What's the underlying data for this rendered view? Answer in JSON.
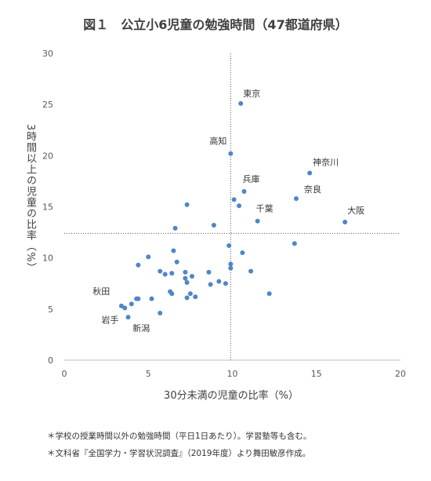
{
  "chart_data": {
    "type": "scatter",
    "title": "図１　公立小6児童の勉強時間（47都道府県）",
    "xlabel": "30分未満の児童の比率（%）",
    "ylabel": "3時間以上の児童の比率（%）",
    "xlim": [
      0,
      20
    ],
    "ylim": [
      0,
      30
    ],
    "xticks": [
      0,
      5,
      10,
      15,
      20
    ],
    "yticks": [
      0,
      5,
      10,
      15,
      20,
      25,
      30
    ],
    "grid": false,
    "reference_lines": {
      "x": 9.9,
      "y": 12.4
    },
    "color": "#4f86c6",
    "points": [
      {
        "x": 10.5,
        "y": 25.1,
        "label": "東京"
      },
      {
        "x": 9.9,
        "y": 20.2,
        "label": "高知"
      },
      {
        "x": 14.6,
        "y": 18.3,
        "label": "神奈川"
      },
      {
        "x": 10.7,
        "y": 16.5,
        "label": "兵庫"
      },
      {
        "x": 13.8,
        "y": 15.8,
        "label": "奈良"
      },
      {
        "x": 11.5,
        "y": 13.6,
        "label": "千葉"
      },
      {
        "x": 16.7,
        "y": 13.5,
        "label": "大阪"
      },
      {
        "x": 4.3,
        "y": 6.0,
        "label": "秋田"
      },
      {
        "x": 3.8,
        "y": 4.2,
        "label": "岩手"
      },
      {
        "x": 5.7,
        "y": 4.6,
        "label": "新潟"
      },
      {
        "x": 10.1,
        "y": 15.7,
        "label": ""
      },
      {
        "x": 10.4,
        "y": 15.1,
        "label": ""
      },
      {
        "x": 7.3,
        "y": 15.2,
        "label": ""
      },
      {
        "x": 6.6,
        "y": 12.9,
        "label": ""
      },
      {
        "x": 8.9,
        "y": 13.2,
        "label": ""
      },
      {
        "x": 13.7,
        "y": 11.4,
        "label": ""
      },
      {
        "x": 9.8,
        "y": 11.2,
        "label": ""
      },
      {
        "x": 6.5,
        "y": 10.7,
        "label": ""
      },
      {
        "x": 10.6,
        "y": 10.5,
        "label": ""
      },
      {
        "x": 5.0,
        "y": 10.1,
        "label": ""
      },
      {
        "x": 6.7,
        "y": 9.6,
        "label": ""
      },
      {
        "x": 9.9,
        "y": 9.4,
        "label": ""
      },
      {
        "x": 9.9,
        "y": 9.0,
        "label": ""
      },
      {
        "x": 4.4,
        "y": 9.3,
        "label": ""
      },
      {
        "x": 5.7,
        "y": 8.7,
        "label": ""
      },
      {
        "x": 6.0,
        "y": 8.4,
        "label": ""
      },
      {
        "x": 6.4,
        "y": 8.5,
        "label": ""
      },
      {
        "x": 7.2,
        "y": 8.6,
        "label": ""
      },
      {
        "x": 8.6,
        "y": 8.6,
        "label": ""
      },
      {
        "x": 11.1,
        "y": 8.7,
        "label": ""
      },
      {
        "x": 7.2,
        "y": 8.0,
        "label": ""
      },
      {
        "x": 7.6,
        "y": 8.2,
        "label": ""
      },
      {
        "x": 7.3,
        "y": 7.6,
        "label": ""
      },
      {
        "x": 9.2,
        "y": 7.7,
        "label": ""
      },
      {
        "x": 9.6,
        "y": 7.5,
        "label": ""
      },
      {
        "x": 8.7,
        "y": 7.4,
        "label": ""
      },
      {
        "x": 6.3,
        "y": 6.7,
        "label": ""
      },
      {
        "x": 6.4,
        "y": 6.5,
        "label": ""
      },
      {
        "x": 7.5,
        "y": 6.5,
        "label": ""
      },
      {
        "x": 7.8,
        "y": 6.2,
        "label": ""
      },
      {
        "x": 7.3,
        "y": 6.1,
        "label": ""
      },
      {
        "x": 12.2,
        "y": 6.5,
        "label": ""
      },
      {
        "x": 5.2,
        "y": 6.0,
        "label": ""
      },
      {
        "x": 4.0,
        "y": 5.5,
        "label": ""
      },
      {
        "x": 3.4,
        "y": 5.3,
        "label": ""
      },
      {
        "x": 3.6,
        "y": 5.1,
        "label": ""
      },
      {
        "x": 4.4,
        "y": 6.0,
        "label": ""
      }
    ]
  },
  "notes": [
    "＊学校の授業時間以外の勉強時間（平日1日あたり）。学習塾等も含む。",
    "＊文科省『全国学力・学習状況調査』（2019年度）より舞田敏彦作成。"
  ]
}
